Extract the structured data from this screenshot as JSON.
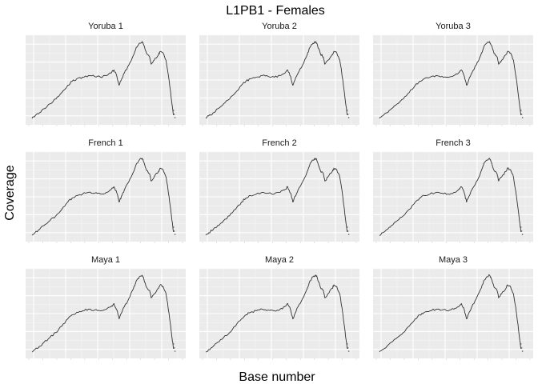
{
  "chart_data": {
    "type": "line",
    "title": "L1PB1 - Females",
    "xlabel": "Base number",
    "ylabel": "Coverage",
    "facet_layout": "3x3 grid",
    "grid": true,
    "x_tick_labels_shown": false,
    "y_tick_labels_shown": false,
    "panels": [
      {
        "name": "Yoruba 1"
      },
      {
        "name": "Yoruba 2"
      },
      {
        "name": "Yoruba 3"
      },
      {
        "name": "French 1"
      },
      {
        "name": "French 2"
      },
      {
        "name": "French 3"
      },
      {
        "name": "Maya 1"
      },
      {
        "name": "Maya 2"
      },
      {
        "name": "Maya 3"
      }
    ],
    "x": [
      0.0,
      0.02,
      0.05,
      0.08,
      0.12,
      0.16,
      0.2,
      0.24,
      0.27,
      0.3,
      0.34,
      0.38,
      0.42,
      0.46,
      0.5,
      0.53,
      0.55,
      0.57,
      0.585,
      0.6,
      0.62,
      0.65,
      0.68,
      0.7,
      0.72,
      0.74,
      0.75,
      0.77,
      0.79,
      0.8,
      0.82,
      0.85,
      0.86,
      0.88,
      0.9,
      0.92,
      0.94,
      0.95
    ],
    "y": [
      0.02,
      0.05,
      0.09,
      0.14,
      0.2,
      0.26,
      0.34,
      0.43,
      0.48,
      0.51,
      0.53,
      0.55,
      0.54,
      0.53,
      0.55,
      0.58,
      0.62,
      0.54,
      0.43,
      0.5,
      0.58,
      0.68,
      0.8,
      0.9,
      0.95,
      0.97,
      0.93,
      0.82,
      0.78,
      0.69,
      0.74,
      0.81,
      0.85,
      0.83,
      0.74,
      0.5,
      0.2,
      0.06
    ],
    "scatter_tail": [
      [
        0.95,
        0.12
      ],
      [
        0.955,
        0.07
      ],
      [
        0.96,
        0.03
      ]
    ]
  }
}
